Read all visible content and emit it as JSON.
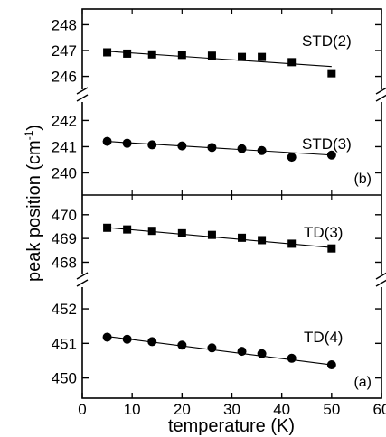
{
  "chart_data": {
    "type": "scatter",
    "ylabel": "peak position (cm",
    "ylabel_sup": "-1",
    "ylabel_close": ")",
    "xlabel": "temperature (K)",
    "xlim": [
      0,
      60
    ],
    "x_ticks": [
      "0",
      "10",
      "20",
      "30",
      "40",
      "50",
      "60"
    ],
    "panels": [
      {
        "label": "(b)",
        "segments": [
          {
            "ylim": [
              245.6,
              248.4
            ],
            "y_ticks": [
              "246",
              "247",
              "248"
            ],
            "series": [
              {
                "name": "STD(2)",
                "marker": "square",
                "x": [
                  5,
                  9,
                  14,
                  20,
                  26,
                  32,
                  36,
                  42,
                  50
                ],
                "y": [
                  246.93,
                  246.88,
                  246.85,
                  246.83,
                  246.8,
                  246.75,
                  246.75,
                  246.55,
                  246.12
                ],
                "fit": [
                  [
                    5,
                    246.97
                  ],
                  [
                    50,
                    246.38
                  ]
                ]
              }
            ]
          },
          {
            "ylim": [
              239.5,
              242.6
            ],
            "y_ticks": [
              "240",
              "241",
              "242"
            ],
            "series": [
              {
                "name": "STD(3)",
                "marker": "circle",
                "x": [
                  5,
                  9,
                  14,
                  20,
                  26,
                  32,
                  36,
                  42,
                  50
                ],
                "y": [
                  241.2,
                  241.13,
                  241.07,
                  241.03,
                  240.97,
                  240.92,
                  240.85,
                  240.6,
                  240.68
                ],
                "fit": [
                  [
                    5,
                    241.2
                  ],
                  [
                    50,
                    240.68
                  ]
                ]
              }
            ]
          }
        ]
      },
      {
        "label": "(a)",
        "segments": [
          {
            "ylim": [
              467.6,
              470.6
            ],
            "y_ticks": [
              "468",
              "469",
              "470"
            ],
            "series": [
              {
                "name": "TD(3)",
                "marker": "square",
                "x": [
                  5,
                  9,
                  14,
                  20,
                  26,
                  32,
                  36,
                  42,
                  50
                ],
                "y": [
                  469.45,
                  469.38,
                  469.32,
                  469.22,
                  469.15,
                  469.03,
                  468.93,
                  468.78,
                  468.58
                ],
                "fit": [
                  [
                    5,
                    469.46
                  ],
                  [
                    50,
                    468.62
                  ]
                ]
              }
            ]
          },
          {
            "ylim": [
              449.65,
              452.55
            ],
            "y_ticks": [
              "450",
              "451",
              "452"
            ],
            "series": [
              {
                "name": "TD(4)",
                "marker": "circle",
                "x": [
                  5,
                  9,
                  14,
                  20,
                  26,
                  32,
                  36,
                  42,
                  50
                ],
                "y": [
                  451.18,
                  451.12,
                  451.05,
                  450.95,
                  450.87,
                  450.77,
                  450.7,
                  450.57,
                  450.38
                ],
                "fit": [
                  [
                    5,
                    451.2
                  ],
                  [
                    50,
                    450.38
                  ]
                ]
              }
            ]
          }
        ]
      }
    ]
  }
}
